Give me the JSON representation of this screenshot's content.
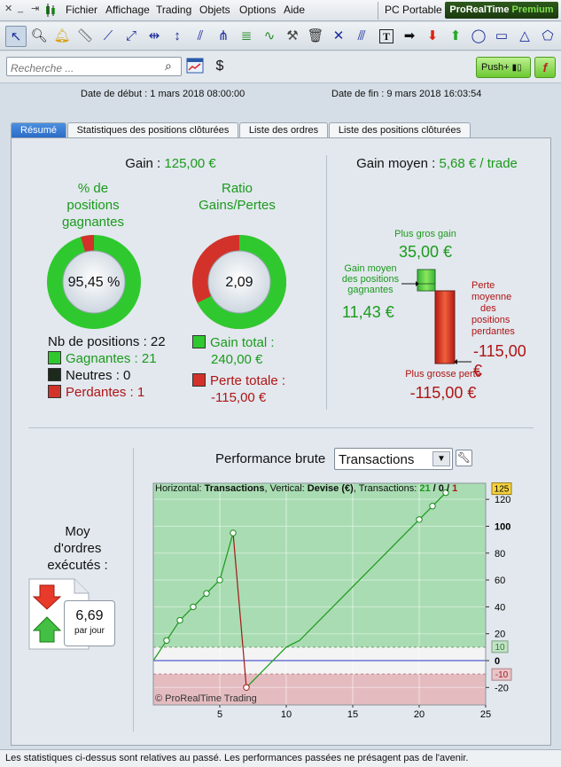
{
  "menu": {
    "items": [
      "Fichier",
      "Affichage",
      "Trading",
      "Objets",
      "Options",
      "Aide"
    ],
    "platform": "PC Portable",
    "brand_main": "ProRealTime",
    "brand_edition": "Premium"
  },
  "search": {
    "placeholder": "Recherche ..."
  },
  "push_label": "Push+",
  "f_label": "f",
  "dates": {
    "start": "Date de début : 1 mars 2018 08:00:00",
    "end": "Date de fin : 9 mars 2018 16:03:54"
  },
  "tabs": [
    "Résumé",
    "Statistiques des positions clôturées",
    "Liste des ordres",
    "Liste des positions clôturées"
  ],
  "summary": {
    "gain_label": "Gain : ",
    "gain_value": "125,00 €",
    "pct_title_1": "% de",
    "pct_title_2": "positions",
    "pct_title_3": "gagnantes",
    "pct_value": "95,45 %",
    "pct_fraction": 0.9545,
    "ratio_title_1": "Ratio",
    "ratio_title_2": "Gains/Pertes",
    "ratio_value": "2,09",
    "ratio_gain_fraction": 0.6761,
    "nb_positions": "Nb de positions : 22",
    "gagnantes": "Gagnantes : 21",
    "neutres": "Neutres : 0",
    "perdantes": "Perdantes : 1",
    "gain_total_label": "Gain total :",
    "gain_total_value": "240,00 €",
    "perte_totale_label": "Perte totale :",
    "perte_totale_value": "-115,00 €",
    "gain_moyen_label": "Gain moyen : ",
    "gain_moyen_value": "5,68 € / trade",
    "plus_gros_gain_label": "Plus gros gain",
    "plus_gros_gain_value": "35,00 €",
    "gain_moyen_pos_label_1": "Gain moyen",
    "gain_moyen_pos_label_2": "des positions",
    "gain_moyen_pos_label_3": "gagnantes",
    "gain_moyen_pos_value": "11,43 €",
    "perte_moy_label_1": "Perte",
    "perte_moy_label_2": "moyenne",
    "perte_moy_label_3": "des",
    "perte_moy_label_4": "positions",
    "perte_moy_label_5": "perdantes",
    "perte_moy_value": "-115,00 €",
    "plus_grosse_perte_label": "Plus grosse perte",
    "plus_grosse_perte_value": "-115,00 €",
    "moy_ordres_1": "Moy",
    "moy_ordres_2": "d'ordres",
    "moy_ordres_3": "exécutés :",
    "ordres_value": "6,69",
    "ordres_unit": "par jour"
  },
  "perf": {
    "title": "Performance brute",
    "select_value": "Transactions",
    "info_h": "Horizontal: ",
    "info_h_val": "Transactions",
    "info_v": ", Vertical: ",
    "info_v_val": "Devise (€)",
    "info_t": ", Transactions: ",
    "info_win": "21",
    "info_sep1": " / ",
    "info_neutral": "0",
    "info_sep2": " / ",
    "info_loss": "1",
    "copyright": "© ProRealTime Trading"
  },
  "chart_data": {
    "type": "line",
    "xlabel": "",
    "ylabel": "",
    "xlim": [
      0,
      25
    ],
    "ylim": [
      -33,
      132
    ],
    "x_ticks": [
      5,
      10,
      15,
      20,
      25
    ],
    "y_ticks": [
      -20,
      0,
      20,
      40,
      60,
      80,
      100,
      120
    ],
    "y_tick_labels": [
      "-20",
      "0",
      "20",
      "40",
      "60",
      "80",
      "100",
      "120"
    ],
    "markers": {
      "top": "125",
      "upper": "10",
      "lower": "-10"
    },
    "band_upper": 10,
    "band_lower": -10,
    "series": [
      {
        "x": [
          0,
          1,
          2,
          3,
          4,
          5,
          6
        ],
        "y": [
          0,
          15,
          30,
          40,
          50,
          60,
          95
        ],
        "color": "#1a9a1a"
      },
      {
        "x": [
          6,
          7
        ],
        "y": [
          95,
          -20
        ],
        "color": "#a01a1a"
      },
      {
        "x": [
          7,
          10,
          11,
          20,
          21,
          22
        ],
        "y": [
          -20,
          10,
          15,
          105,
          115,
          125
        ],
        "color": "#1a9a1a"
      }
    ],
    "dots": [
      1,
      2,
      3,
      4,
      5,
      6,
      7,
      20,
      21,
      22
    ]
  },
  "status": "Les statistiques ci-dessus sont relatives au passé. Les performances passées ne présagent pas de l'avenir."
}
